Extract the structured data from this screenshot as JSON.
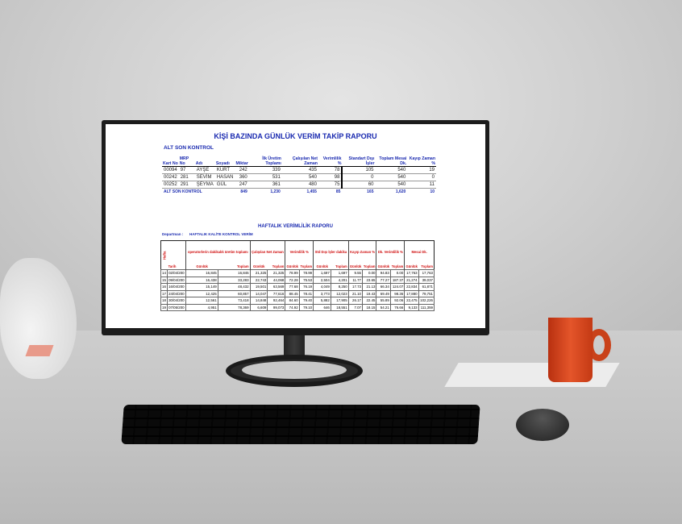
{
  "report1": {
    "title": "KİŞİ BAZINDA GÜNLÜK VERİM TAKİP RAPORU",
    "section": "ALT SON KONTROL",
    "headers": [
      "Kart No",
      "MRP No",
      "Adı",
      "Soyadı",
      "Miktar",
      "İlk Üretim Toplamı",
      "Çalışılan Net Zaman",
      "Verimlilik %",
      "Standart Dışı İşler",
      "Toplam Mesai Dk.",
      "Kayıp Zaman %"
    ],
    "rows": [
      [
        "00094",
        "97",
        "AYŞE",
        "KURT",
        "242",
        "339",
        "435",
        "78",
        "105",
        "540",
        "19"
      ],
      [
        "00242",
        "281",
        "SEVİM",
        "HASAN",
        "360",
        "531",
        "540",
        "98",
        "0",
        "540",
        "0"
      ],
      [
        "00252",
        "291",
        "ŞEYMA",
        "GÜL",
        "247",
        "361",
        "480",
        "75",
        "60",
        "540",
        "11"
      ]
    ],
    "total": [
      "ALT SON KONTROL",
      "849",
      "1,230",
      "1,455",
      "85",
      "165",
      "1,620",
      "10"
    ]
  },
  "report2": {
    "title": "HAFTALIK VERİMLİLİK RAPORU",
    "dept_label": "Departman :",
    "dept_value": "HAFTALIK KALİTE KONTROL   VERİM",
    "week_label": "Hafta",
    "date_label": "Tarih",
    "groups": [
      "operatorlerin dakikalık üretim toplamı",
      "Çalışılan Net Zaman",
      "Verimlilik %",
      "Std Dışı İşler dakika",
      "Kayıp Zaman %",
      "Dk. Verimlilik %",
      "Mesai Dk."
    ],
    "sub_daily": "Günlük",
    "sub_total": "Toplam",
    "rows": [
      [
        "14",
        "02/04/200",
        "16,845",
        "16,845",
        "21,325",
        "21,325",
        "78.99",
        "78.99",
        "1,697",
        "1,697",
        "9.55",
        "0.00",
        "94.83",
        "0.00",
        "17,763",
        "17,763"
      ],
      [
        "15",
        "09/04/200",
        "16,438",
        "33,283",
        "22,743",
        "44,068",
        "72.28",
        "75.53",
        "2,504",
        "4,201",
        "11.77",
        "23.65",
        "77.27",
        "187.37",
        "21,274",
        "39,037"
      ],
      [
        "16",
        "16/04/200",
        "15,149",
        "48,432",
        "19,501",
        "63,569",
        "77.68",
        "76.19",
        "4,049",
        "8,250",
        "17.73",
        "21.13",
        "66.34",
        "124.07",
        "22,834",
        "61,871"
      ],
      [
        "17",
        "24/04/200",
        "12,425",
        "60,857",
        "14,047",
        "77,616",
        "88.45",
        "78.41",
        "3,773",
        "12,023",
        "21.10",
        "19.43",
        "69.49",
        "98.36",
        "17,880",
        "79,751"
      ],
      [
        "18",
        "30/04/200",
        "12,561",
        "73,418",
        "14,848",
        "92,464",
        "84.60",
        "79.40",
        "5,882",
        "17,905",
        "26.17",
        "22.45",
        "55.89",
        "92.06",
        "22,475",
        "102,226"
      ],
      [
        "19",
        "07/05/200",
        "4,951",
        "78,369",
        "6,609",
        "99,073",
        "74.92",
        "79.10",
        "646",
        "18,551",
        "7.07",
        "18.15",
        "54.21",
        "76.66",
        "9,133",
        "111,359"
      ]
    ]
  },
  "colors": {
    "header_blue": "#1a2ab0",
    "header_red": "#d01010",
    "mug": "#d8461c"
  }
}
